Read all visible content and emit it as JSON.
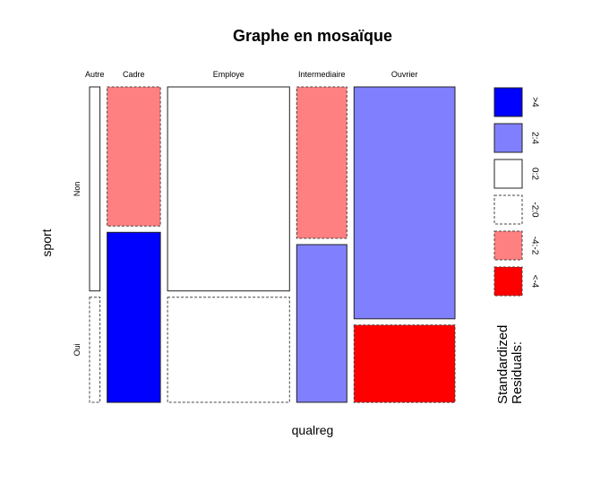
{
  "chart_data": {
    "type": "mosaic",
    "title": "Graphe en mosaïque",
    "xlabel": "qualreg",
    "ylabel": "sport",
    "columns": [
      "Autre",
      "Cadre",
      "Employe",
      "Intermediaire",
      "Ouvrier"
    ],
    "rows": [
      "Non",
      "Oui"
    ],
    "column_shares": [
      0.033,
      0.17,
      0.389,
      0.16,
      0.322
    ],
    "non_share_within_column": [
      0.66,
      0.45,
      0.66,
      0.49,
      0.75
    ],
    "cells": [
      {
        "column": "Autre",
        "row": "Non",
        "residual_class": "0:2"
      },
      {
        "column": "Autre",
        "row": "Oui",
        "residual_class": "-2:0"
      },
      {
        "column": "Cadre",
        "row": "Non",
        "residual_class": "-4:-2"
      },
      {
        "column": "Cadre",
        "row": "Oui",
        "residual_class": ">4"
      },
      {
        "column": "Employe",
        "row": "Non",
        "residual_class": "0:2"
      },
      {
        "column": "Employe",
        "row": "Oui",
        "residual_class": "-2:0"
      },
      {
        "column": "Intermediaire",
        "row": "Non",
        "residual_class": "-4:-2"
      },
      {
        "column": "Intermediaire",
        "row": "Oui",
        "residual_class": "2:4"
      },
      {
        "column": "Ouvrier",
        "row": "Non",
        "residual_class": "2:4"
      },
      {
        "column": "Ouvrier",
        "row": "Oui",
        "residual_class": "<-4"
      }
    ],
    "legend": {
      "title": "Standardized\nResiduals:",
      "placement": "right",
      "entries": [
        {
          "label": ">4",
          "color": "#0000ff",
          "dashed": false
        },
        {
          "label": "2:4",
          "color": "#8080ff",
          "dashed": false
        },
        {
          "label": "0:2",
          "color": "#ffffff",
          "dashed": false
        },
        {
          "label": "-2:0",
          "color": "#ffffff",
          "dashed": true
        },
        {
          "label": "-4:-2",
          "color": "#ff8080",
          "dashed": true
        },
        {
          "label": "<-4",
          "color": "#ff0000",
          "dashed": true
        }
      ]
    }
  }
}
